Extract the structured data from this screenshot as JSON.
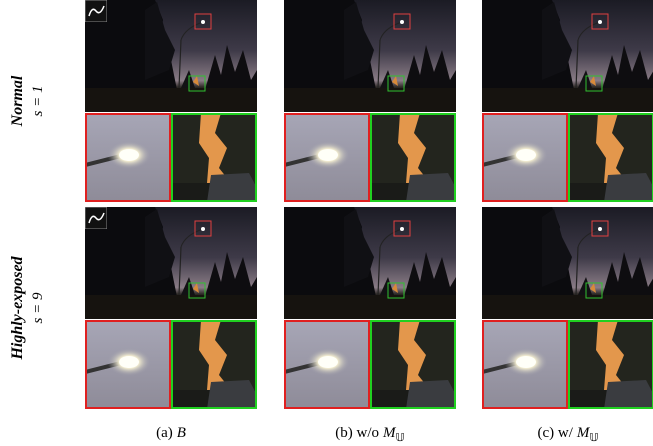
{
  "rows": [
    {
      "label": "Normal",
      "param": "s = 1"
    },
    {
      "label": "Highly-exposed",
      "param": "s = 9"
    }
  ],
  "captions": [
    {
      "prefix": "(a)",
      "math": "B"
    },
    {
      "prefix": "(b) w/o",
      "math": "M",
      "sub": "𝕌"
    },
    {
      "prefix": "(c) w/",
      "math": "M",
      "sub": "𝕌"
    }
  ]
}
